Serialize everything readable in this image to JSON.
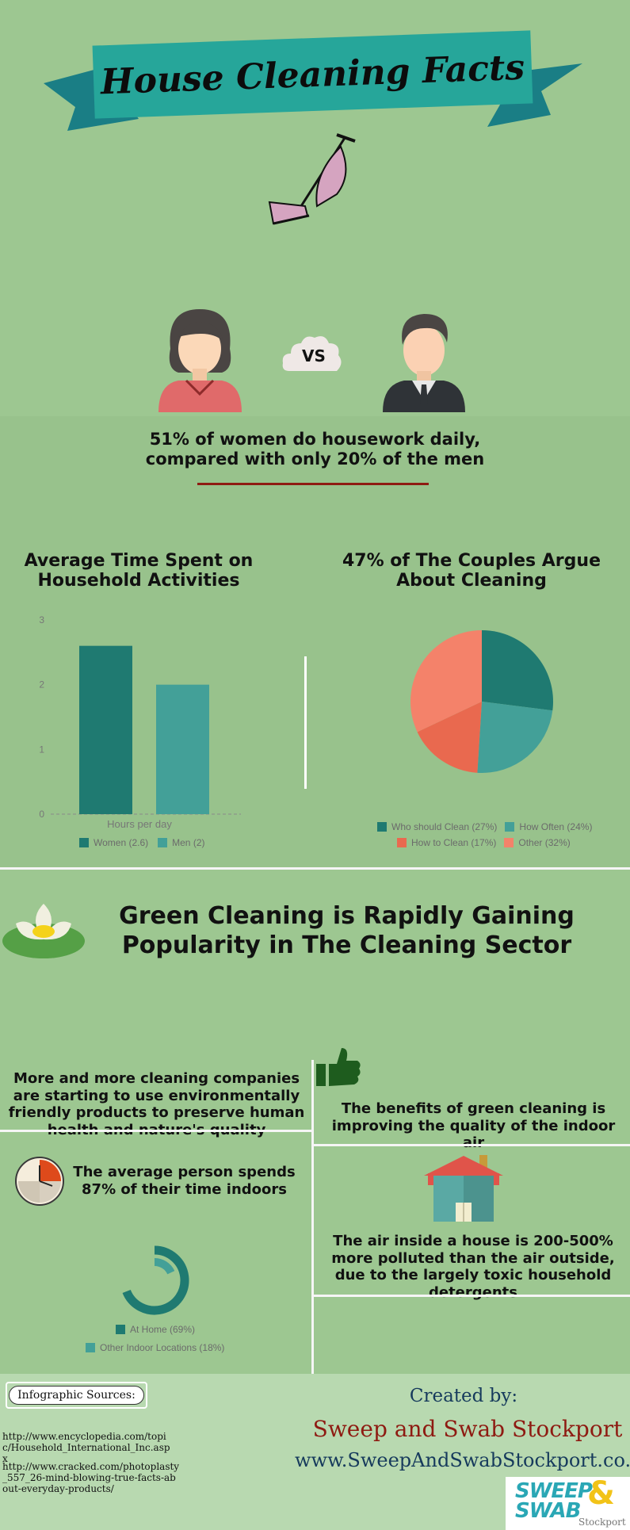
{
  "header": {
    "title": "House Cleaning Facts"
  },
  "versus": {
    "badge": "VS",
    "caption": "51% of women do housework daily, compared with only 20% of the men"
  },
  "chart_data": [
    {
      "type": "bar",
      "title": "Average Time Spent on Household Activities",
      "xlabel": "Hours per day",
      "categories": [
        "Women",
        "Men"
      ],
      "values": [
        2.6,
        2
      ],
      "ylim": [
        0,
        3
      ],
      "yticks": [
        "0",
        "1",
        "2",
        "3"
      ],
      "colors": [
        "#1f7a71",
        "#43a098"
      ],
      "legend": [
        "Women (2.6)",
        "Men (2)"
      ]
    },
    {
      "type": "pie",
      "title": "47% of The Couples Argue About Cleaning",
      "labels": [
        "Who should Clean (27%)",
        "How Often (24%)",
        "How to Clean (17%)",
        "Other (32%)"
      ],
      "values": [
        27,
        24,
        17,
        32
      ],
      "colors": [
        "#1f7a71",
        "#43a098",
        "#e9694f",
        "#f4826a"
      ]
    },
    {
      "type": "pie",
      "labels": [
        "At Home (69%)",
        "Other Indoor Locations (18%)"
      ],
      "values": [
        69,
        18
      ],
      "colors": [
        "#1f7a71",
        "#43a098"
      ]
    }
  ],
  "green": {
    "title": "Green Cleaning is Rapidly Gaining Popularity in The Cleaning Sector",
    "fact1": "More and more cleaning companies are starting to use environmentally friendly products to preserve human health and nature's quality",
    "fact2": "The benefits of green cleaning is improving the quality of the indoor air",
    "fact3": "The average person spends 87% of their time indoors",
    "fact4": "The air inside a house is 200-500% more polluted than the air outside, due to the largely toxic household detergents"
  },
  "footer": {
    "sources_label": "Infographic Sources:",
    "source1": "http://www.encyclopedia.com/topic/Household_International_Inc.aspx",
    "source2": "http://www.cracked.com/photoplasty_557_26-mind-blowing-true-facts-about-everyday-products/",
    "created_by": "Created by:",
    "company": "Sweep and Swab Stockport",
    "website": "www.SweepAndSwabStockport.co.uk",
    "logo_line1": "SWEEP",
    "logo_line2": "SWAB",
    "logo_amp": "&",
    "logo_sub": "Stockport"
  },
  "colors": {
    "teal_dark": "#1f7a71",
    "teal": "#43a098",
    "coral": "#f4826a",
    "red_line": "#8e1b12",
    "company": "#8e1b12"
  }
}
